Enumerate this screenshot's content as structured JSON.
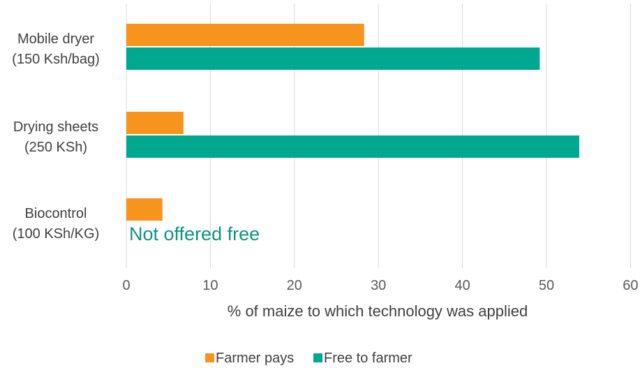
{
  "chart_data": {
    "type": "bar",
    "orientation": "horizontal",
    "categories": [
      [
        "Mobile dryer",
        "(150 Ksh/bag)"
      ],
      [
        "Drying sheets",
        "(250 KSh)"
      ],
      [
        "Biocontrol",
        "(100 KSh/KG)"
      ]
    ],
    "series": [
      {
        "name": "Farmer pays",
        "color": "#f7941d",
        "values": [
          28.3,
          6.8,
          4.3
        ]
      },
      {
        "name": "Free to farmer",
        "color": "#00a88f",
        "values": [
          49.2,
          53.9,
          null
        ]
      }
    ],
    "xlabel": "% of maize to which technology was applied",
    "ylabel": "",
    "xlim": [
      0,
      60
    ],
    "xticks": [
      "0",
      "10",
      "20",
      "30",
      "40",
      "50",
      "60"
    ],
    "grid": "vertical",
    "legend_position": "bottom",
    "annotations": [
      {
        "text": "Not offered free",
        "category_index": 2,
        "color": "#0d9480"
      }
    ]
  }
}
